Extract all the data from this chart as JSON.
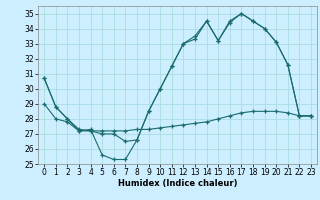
{
  "xlabel": "Humidex (Indice chaleur)",
  "background_color": "#cceeff",
  "grid_color": "#aadddd",
  "line_color": "#1a6b6b",
  "xlim": [
    -0.5,
    23.5
  ],
  "ylim": [
    25,
    35.5
  ],
  "xticks": [
    0,
    1,
    2,
    3,
    4,
    5,
    6,
    7,
    8,
    9,
    10,
    11,
    12,
    13,
    14,
    15,
    16,
    17,
    18,
    19,
    20,
    21,
    22,
    23
  ],
  "yticks": [
    25,
    26,
    27,
    28,
    29,
    30,
    31,
    32,
    33,
    34,
    35
  ],
  "line1_y": [
    30.7,
    28.8,
    28.0,
    27.2,
    27.3,
    25.6,
    25.3,
    25.3,
    26.6,
    28.5,
    30.0,
    31.5,
    33.0,
    33.3,
    34.5,
    33.2,
    34.4,
    35.0,
    34.5,
    34.0,
    33.1,
    31.6,
    28.2,
    28.2
  ],
  "line2_y": [
    29.0,
    28.0,
    27.8,
    27.2,
    27.2,
    27.2,
    27.2,
    27.2,
    27.3,
    27.3,
    27.4,
    27.5,
    27.6,
    27.7,
    27.8,
    28.0,
    28.2,
    28.4,
    28.5,
    28.5,
    28.5,
    28.4,
    28.2,
    28.2
  ],
  "line3_y": [
    30.7,
    28.8,
    28.0,
    27.3,
    27.2,
    27.0,
    27.0,
    26.5,
    26.6,
    28.5,
    30.0,
    31.5,
    33.0,
    33.5,
    34.5,
    33.2,
    34.5,
    35.0,
    34.5,
    34.0,
    33.1,
    31.6,
    28.2,
    28.2
  ]
}
